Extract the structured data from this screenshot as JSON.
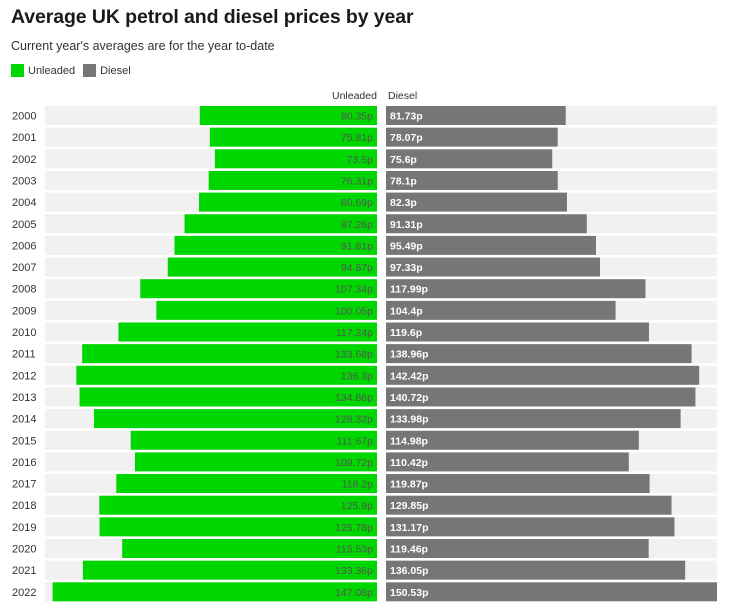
{
  "title": "Average UK petrol and diesel prices by year",
  "subtitle": "Current year's averages are for the year to-date",
  "colors": {
    "unleaded": "#00d600",
    "diesel": "#767676",
    "track": "#f1f1f1"
  },
  "legend": [
    {
      "label": "Unleaded",
      "color": "#00d600"
    },
    {
      "label": "Diesel",
      "color": "#767676"
    }
  ],
  "chart_data": {
    "type": "bar",
    "layout": "butterfly",
    "categories": [
      "2000",
      "2001",
      "2002",
      "2003",
      "2004",
      "2005",
      "2006",
      "2007",
      "2008",
      "2009",
      "2010",
      "2011",
      "2012",
      "2013",
      "2014",
      "2015",
      "2016",
      "2017",
      "2018",
      "2019",
      "2020",
      "2021",
      "2022"
    ],
    "series": [
      {
        "name": "Unleaded",
        "values": [
          80.35,
          75.81,
          73.5,
          76.31,
          80.69,
          87.26,
          91.81,
          94.87,
          107.34,
          100.05,
          117.24,
          133.68,
          136.3,
          134.86,
          128.32,
          111.67,
          109.72,
          118.2,
          125.9,
          125.78,
          115.53,
          133.36,
          147.08
        ],
        "labels": [
          "80.35p",
          "75.81p",
          "73.5p",
          "76.31p",
          "80.69p",
          "87.26p",
          "91.81p",
          "94.87p",
          "107.34p",
          "100.05p",
          "117.24p",
          "133.68p",
          "136.3p",
          "134.86p",
          "128.32p",
          "111.67p",
          "109.72p",
          "118.2p",
          "125.9p",
          "125.78p",
          "115.53p",
          "133.36p",
          "147.08p"
        ]
      },
      {
        "name": "Diesel",
        "values": [
          81.73,
          78.07,
          75.6,
          78.1,
          82.3,
          91.31,
          95.49,
          97.33,
          117.99,
          104.4,
          119.6,
          138.96,
          142.42,
          140.72,
          133.98,
          114.98,
          110.42,
          119.87,
          129.85,
          131.17,
          119.46,
          136.05,
          150.53
        ],
        "labels": [
          "81.73p",
          "78.07p",
          "75.6p",
          "78.1p",
          "82.3p",
          "91.31p",
          "95.49p",
          "97.33p",
          "117.99p",
          "104.4p",
          "119.6p",
          "138.96p",
          "142.42p",
          "140.72p",
          "133.98p",
          "114.98p",
          "110.42p",
          "119.87p",
          "129.85p",
          "131.17p",
          "119.46p",
          "136.05p",
          "150.53p"
        ]
      }
    ],
    "xlim": [
      0,
      150.53
    ],
    "grid": false,
    "legend_position": "top-left"
  }
}
